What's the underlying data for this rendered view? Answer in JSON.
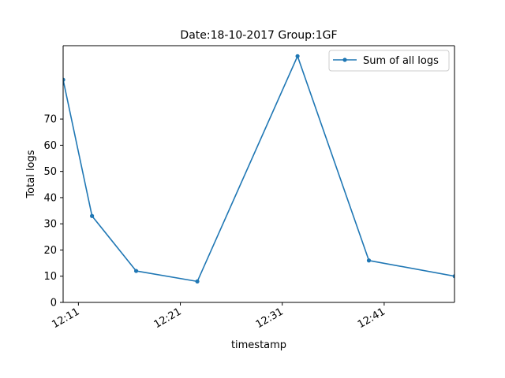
{
  "chart_data": {
    "type": "line",
    "title": "Date:18-10-2017  Group:1GF",
    "xlabel": "timestamp",
    "ylabel": "Total logs",
    "x_ticks": [
      "12:11",
      "12:21",
      "12:31",
      "12:41"
    ],
    "x_tick_minutes": [
      731,
      741,
      751,
      761
    ],
    "xlim_minutes": [
      729.5,
      767.9
    ],
    "y_ticks": [
      0,
      10,
      20,
      30,
      40,
      50,
      60,
      70
    ],
    "ylim": [
      0,
      98
    ],
    "grid": false,
    "legend": "top-right",
    "series": [
      {
        "name": "Sum of all logs",
        "color": "#1f77b4",
        "marker": "point",
        "points": [
          {
            "time": "12:09:30",
            "value": 85
          },
          {
            "time": "12:12:20",
            "value": 33
          },
          {
            "time": "12:16:40",
            "value": 12
          },
          {
            "time": "12:22:40",
            "value": 8
          },
          {
            "time": "12:32:30",
            "value": 94
          },
          {
            "time": "12:39:30",
            "value": 16
          },
          {
            "time": "12:47:55",
            "value": 10
          }
        ]
      }
    ]
  }
}
